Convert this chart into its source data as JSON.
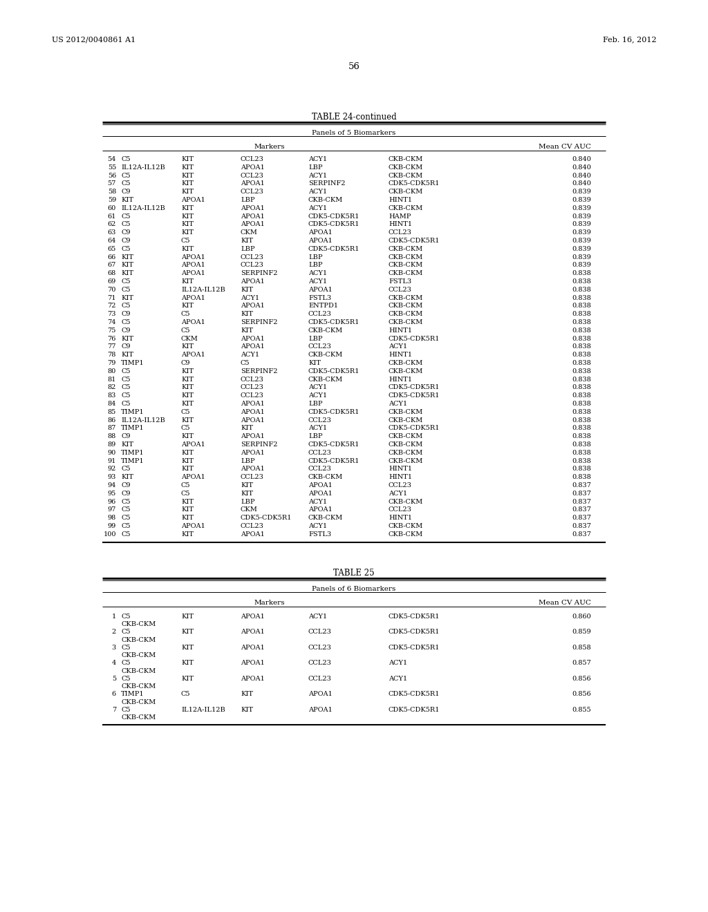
{
  "page_header_left": "US 2012/0040861 A1",
  "page_header_right": "Feb. 16, 2012",
  "page_number": "56",
  "table24_title": "TABLE 24-continued",
  "table24_subtitle": "Panels of 5 Biomarkers",
  "table24_col_markers": "Markers",
  "table24_col_auc": "Mean CV AUC",
  "table24_rows": [
    [
      "54",
      "C5",
      "KIT",
      "CCL23",
      "ACY1",
      "CKB-CKM",
      "0.840"
    ],
    [
      "55",
      "IL12A-IL12B",
      "KIT",
      "APOA1",
      "LBP",
      "CKB-CKM",
      "0.840"
    ],
    [
      "56",
      "C5",
      "KIT",
      "CCL23",
      "ACY1",
      "CKB-CKM",
      "0.840"
    ],
    [
      "57",
      "C5",
      "KIT",
      "APOA1",
      "SERPINF2",
      "CDK5-CDK5R1",
      "0.840"
    ],
    [
      "58",
      "C9",
      "KIT",
      "CCL23",
      "ACY1",
      "CKB-CKM",
      "0.839"
    ],
    [
      "59",
      "KIT",
      "APOA1",
      "LBP",
      "CKB-CKM",
      "HINT1",
      "0.839"
    ],
    [
      "60",
      "IL12A-IL12B",
      "KIT",
      "APOA1",
      "ACY1",
      "CKB-CKM",
      "0.839"
    ],
    [
      "61",
      "C5",
      "KIT",
      "APOA1",
      "CDK5-CDK5R1",
      "HAMP",
      "0.839"
    ],
    [
      "62",
      "C5",
      "KIT",
      "APOA1",
      "CDK5-CDK5R1",
      "HINT1",
      "0.839"
    ],
    [
      "63",
      "C9",
      "KIT",
      "CKM",
      "APOA1",
      "CCL23",
      "0.839"
    ],
    [
      "64",
      "C9",
      "C5",
      "KIT",
      "APOA1",
      "CDK5-CDK5R1",
      "0.839"
    ],
    [
      "65",
      "C5",
      "KIT",
      "LBP",
      "CDK5-CDK5R1",
      "CKB-CKM",
      "0.839"
    ],
    [
      "66",
      "KIT",
      "APOA1",
      "CCL23",
      "LBP",
      "CKB-CKM",
      "0.839"
    ],
    [
      "67",
      "KIT",
      "APOA1",
      "CCL23",
      "LBP",
      "CKB-CKM",
      "0.839"
    ],
    [
      "68",
      "KIT",
      "APOA1",
      "SERPINF2",
      "ACY1",
      "CKB-CKM",
      "0.838"
    ],
    [
      "69",
      "C5",
      "KIT",
      "APOA1",
      "ACY1",
      "FSTL3",
      "0.838"
    ],
    [
      "70",
      "C5",
      "IL12A-IL12B",
      "KIT",
      "APOA1",
      "CCL23",
      "0.838"
    ],
    [
      "71",
      "KIT",
      "APOA1",
      "ACY1",
      "FSTL3",
      "CKB-CKM",
      "0.838"
    ],
    [
      "72",
      "C5",
      "KIT",
      "APOA1",
      "ENTPD1",
      "CKB-CKM",
      "0.838"
    ],
    [
      "73",
      "C9",
      "C5",
      "KIT",
      "CCL23",
      "CKB-CKM",
      "0.838"
    ],
    [
      "74",
      "C5",
      "APOA1",
      "SERPINF2",
      "CDK5-CDK5R1",
      "CKB-CKM",
      "0.838"
    ],
    [
      "75",
      "C9",
      "C5",
      "KIT",
      "CKB-CKM",
      "HINT1",
      "0.838"
    ],
    [
      "76",
      "KIT",
      "CKM",
      "APOA1",
      "LBP",
      "CDK5-CDK5R1",
      "0.838"
    ],
    [
      "77",
      "C9",
      "KIT",
      "APOA1",
      "CCL23",
      "ACY1",
      "0.838"
    ],
    [
      "78",
      "KIT",
      "APOA1",
      "ACY1",
      "CKB-CKM",
      "HINT1",
      "0.838"
    ],
    [
      "79",
      "TIMP1",
      "C9",
      "C5",
      "KIT",
      "CKB-CKM",
      "0.838"
    ],
    [
      "80",
      "C5",
      "KIT",
      "SERPINF2",
      "CDK5-CDK5R1",
      "CKB-CKM",
      "0.838"
    ],
    [
      "81",
      "C5",
      "KIT",
      "CCL23",
      "CKB-CKM",
      "HINT1",
      "0.838"
    ],
    [
      "82",
      "C5",
      "KIT",
      "CCL23",
      "ACY1",
      "CDK5-CDK5R1",
      "0.838"
    ],
    [
      "83",
      "C5",
      "KIT",
      "CCL23",
      "ACY1",
      "CDK5-CDK5R1",
      "0.838"
    ],
    [
      "84",
      "C5",
      "KIT",
      "APOA1",
      "LBP",
      "ACY1",
      "0.838"
    ],
    [
      "85",
      "TIMP1",
      "C5",
      "APOA1",
      "CDK5-CDK5R1",
      "CKB-CKM",
      "0.838"
    ],
    [
      "86",
      "IL12A-IL12B",
      "KIT",
      "APOA1",
      "CCL23",
      "CKB-CKM",
      "0.838"
    ],
    [
      "87",
      "TIMP1",
      "C5",
      "KIT",
      "ACY1",
      "CDK5-CDK5R1",
      "0.838"
    ],
    [
      "88",
      "C9",
      "KIT",
      "APOA1",
      "LBP",
      "CKB-CKM",
      "0.838"
    ],
    [
      "89",
      "KIT",
      "APOA1",
      "SERPINF2",
      "CDK5-CDK5R1",
      "CKB-CKM",
      "0.838"
    ],
    [
      "90",
      "TIMP1",
      "KIT",
      "APOA1",
      "CCL23",
      "CKB-CKM",
      "0.838"
    ],
    [
      "91",
      "TIMP1",
      "KIT",
      "LBP",
      "CDK5-CDK5R1",
      "CKB-CKM",
      "0.838"
    ],
    [
      "92",
      "C5",
      "KIT",
      "APOA1",
      "CCL23",
      "HINT1",
      "0.838"
    ],
    [
      "93",
      "KIT",
      "APOA1",
      "CCL23",
      "CKB-CKM",
      "HINT1",
      "0.838"
    ],
    [
      "94",
      "C9",
      "C5",
      "KIT",
      "APOA1",
      "CCL23",
      "0.837"
    ],
    [
      "95",
      "C9",
      "C5",
      "KIT",
      "APOA1",
      "ACY1",
      "0.837"
    ],
    [
      "96",
      "C5",
      "KIT",
      "LBP",
      "ACY1",
      "CKB-CKM",
      "0.837"
    ],
    [
      "97",
      "C5",
      "KIT",
      "CKM",
      "APOA1",
      "CCL23",
      "0.837"
    ],
    [
      "98",
      "C5",
      "KIT",
      "CDK5-CDK5R1",
      "CKB-CKM",
      "HINT1",
      "0.837"
    ],
    [
      "99",
      "C5",
      "APOA1",
      "CCL23",
      "ACY1",
      "CKB-CKM",
      "0.837"
    ],
    [
      "100",
      "C5",
      "KIT",
      "APOA1",
      "FSTL3",
      "CKB-CKM",
      "0.837"
    ]
  ],
  "table25_title": "TABLE 25",
  "table25_subtitle": "Panels of 6 Biomarkers",
  "table25_col_markers": "Markers",
  "table25_col_auc": "Mean CV AUC",
  "table25_rows": [
    [
      "1",
      "C5",
      "CKB-CKM",
      "KIT",
      "APOA1",
      "ACY1",
      "CDK5-CDK5R1",
      "0.860"
    ],
    [
      "2",
      "C5",
      "CKB-CKM",
      "KIT",
      "APOA1",
      "CCL23",
      "CDK5-CDK5R1",
      "0.859"
    ],
    [
      "3",
      "C5",
      "CKB-CKM",
      "KIT",
      "APOA1",
      "CCL23",
      "CDK5-CDK5R1",
      "0.858"
    ],
    [
      "4",
      "C5",
      "CKB-CKM",
      "KIT",
      "APOA1",
      "CCL23",
      "ACY1",
      "0.857"
    ],
    [
      "5",
      "C5",
      "CKB-CKM",
      "KIT",
      "APOA1",
      "CCL23",
      "ACY1",
      "0.856"
    ],
    [
      "6",
      "TIMP1",
      "CKB-CKM",
      "C5",
      "KIT",
      "APOA1",
      "CDK5-CDK5R1",
      "0.856"
    ],
    [
      "7",
      "C5",
      "CKB-CKM",
      "IL12A-IL12B",
      "KIT",
      "APOA1",
      "CDK5-CDK5R1",
      "0.855"
    ]
  ]
}
